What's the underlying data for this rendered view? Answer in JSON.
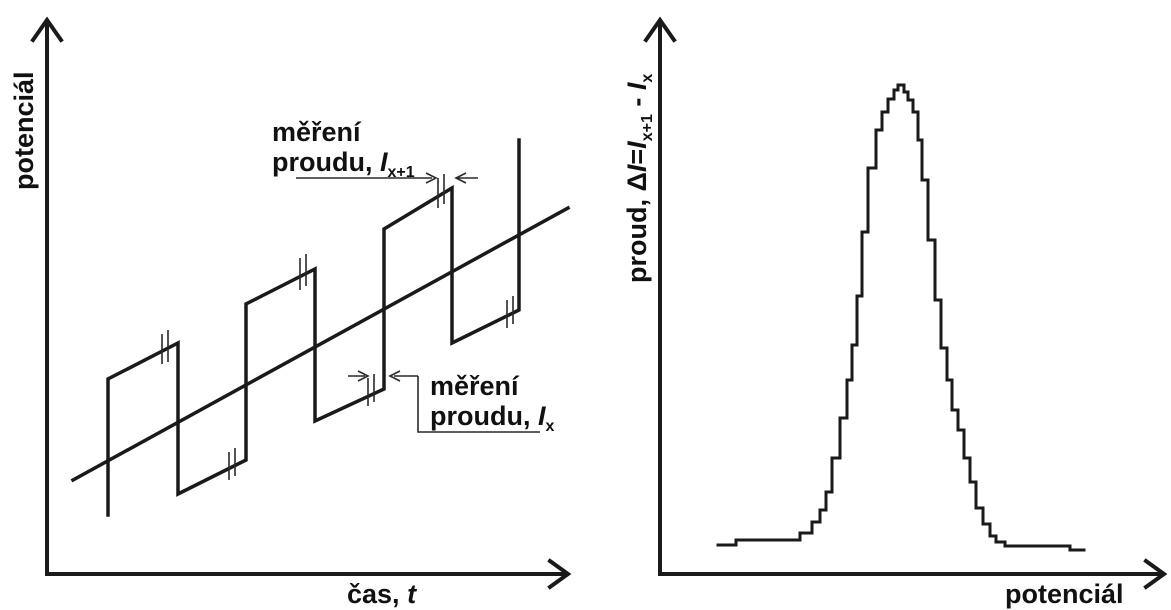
{
  "left_panel": {
    "y_axis_label": "potenciál",
    "x_axis_label": {
      "text": "čas, ",
      "var": "t"
    },
    "annotation_top": {
      "line1": "měření",
      "line2": "proudu, ",
      "var": "I",
      "sub": "x+1"
    },
    "annotation_bottom": {
      "line1": "měření",
      "line2": "proudu, ",
      "var": "I",
      "sub": "x"
    }
  },
  "right_panel": {
    "y_axis_label": {
      "prefix": "proud, Δ",
      "i1": "I",
      "eq": "=",
      "i2": "I",
      "s2": "x+1",
      "minus": " - ",
      "i3": "I",
      "s3": "x"
    },
    "x_axis_label": "potenciál"
  },
  "colors": {
    "ink": "#1a1a1a",
    "background": "#ffffff"
  }
}
